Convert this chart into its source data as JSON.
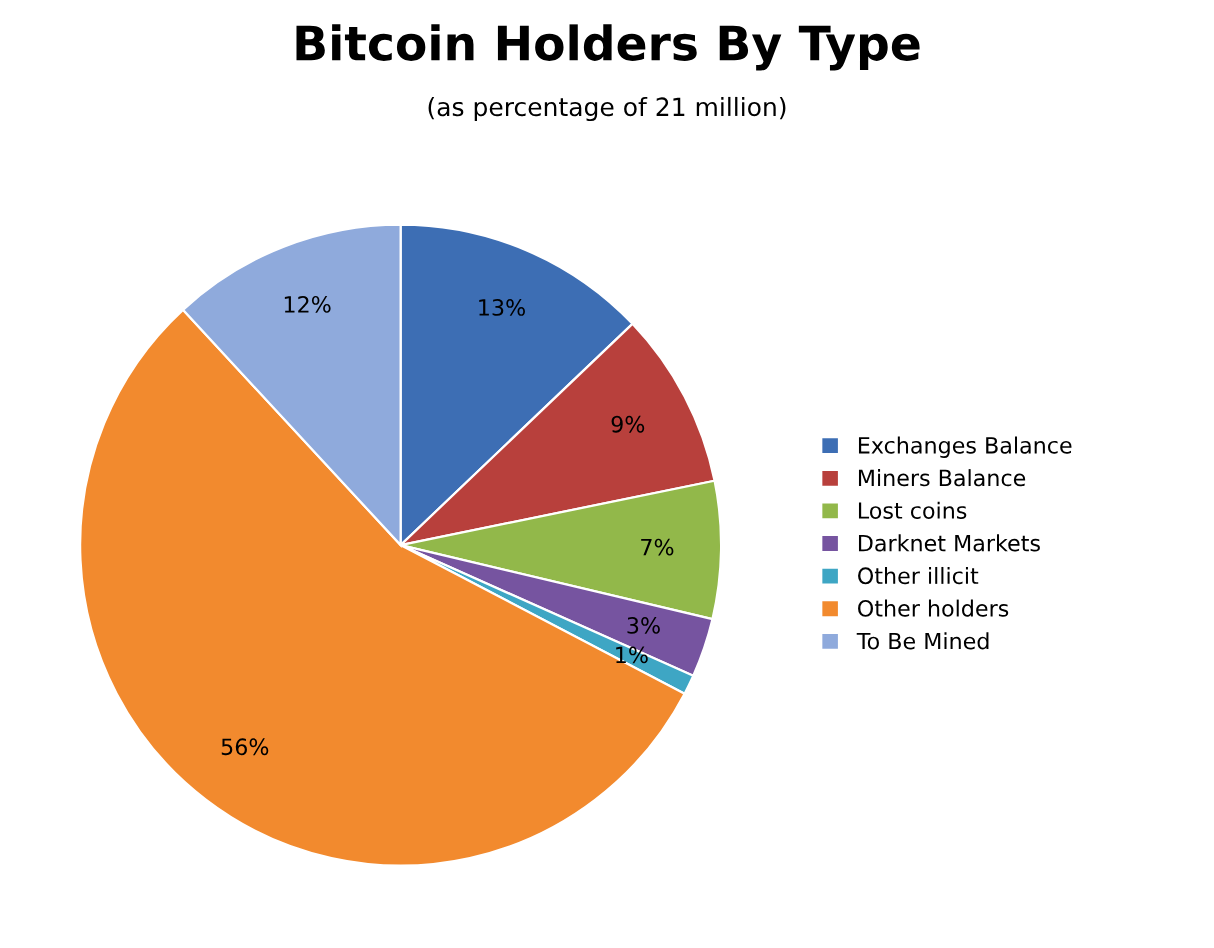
{
  "chart_data": {
    "type": "pie",
    "title": "Bitcoin Holders By Type",
    "subtitle": "(as percentage of 21 million)",
    "categories": [
      "Exchanges Balance",
      "Miners Balance",
      "Lost coins",
      "Darknet Markets",
      "Other illicit",
      "Other holders",
      "To Be Mined"
    ],
    "values": [
      13,
      9,
      7,
      3,
      1,
      56,
      12
    ],
    "colors": [
      "#3d6eb4",
      "#b8403c",
      "#92b84a",
      "#7654a0",
      "#3ea6c4",
      "#f28a2e",
      "#8faadc"
    ],
    "value_labels": [
      "13%",
      "9%",
      "7%",
      "3%",
      "1%",
      "56%",
      "12%"
    ],
    "legend": "right"
  }
}
